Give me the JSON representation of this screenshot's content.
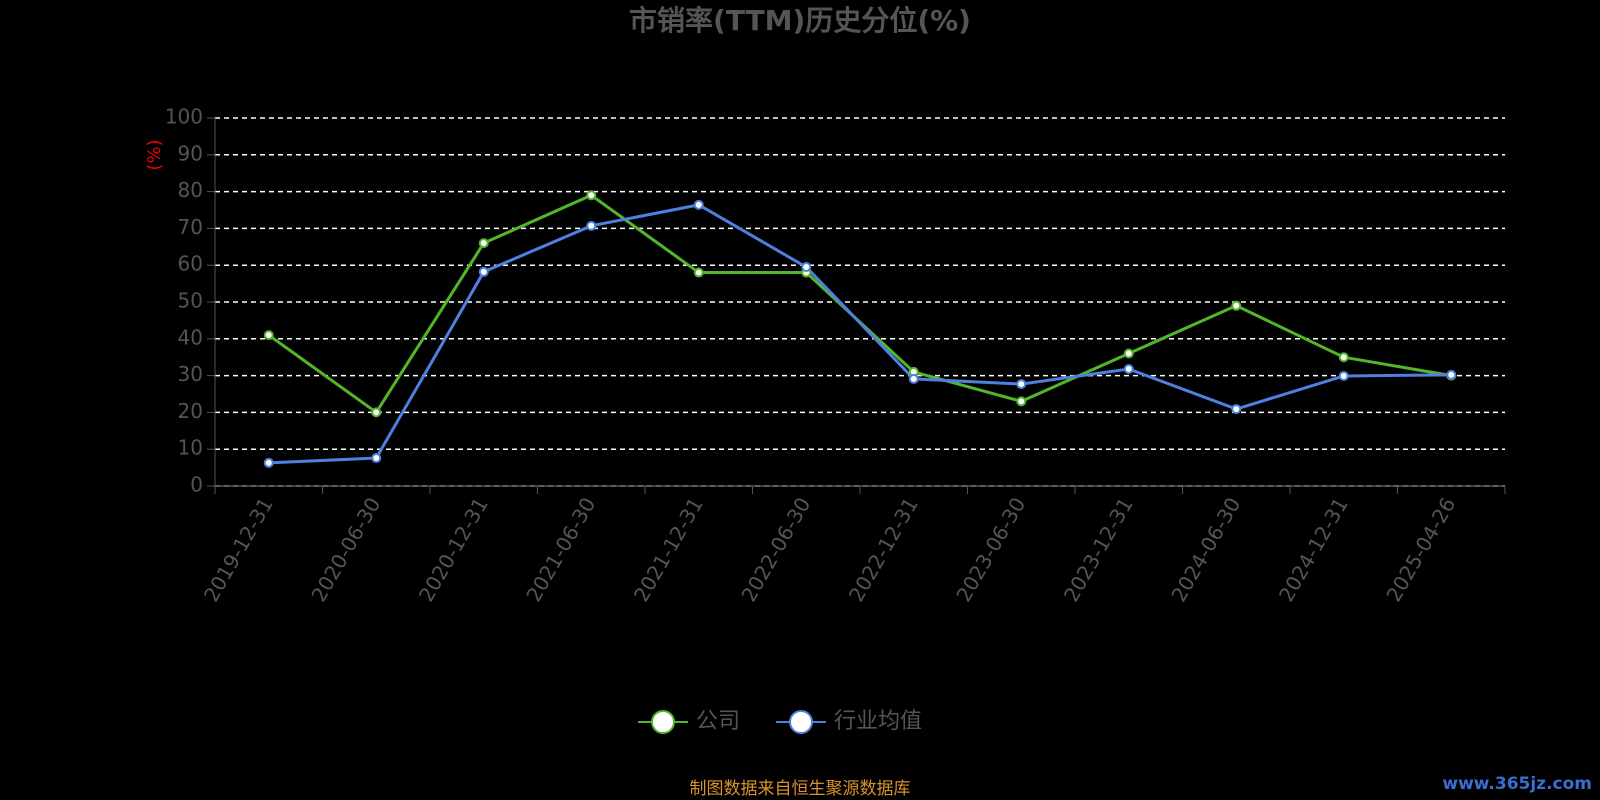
{
  "chart_data": {
    "type": "line",
    "title": "市销率(TTM)历史分位(%)",
    "y_label": "(%)",
    "categories": [
      "2019-12-31",
      "2020-06-30",
      "2020-12-31",
      "2021-06-30",
      "2021-12-31",
      "2022-06-30",
      "2022-12-31",
      "2023-06-30",
      "2023-12-31",
      "2024-06-30",
      "2024-12-31",
      "2025-04-26"
    ],
    "series": [
      {
        "name": "公司",
        "color": "#52b52a",
        "values": [
          41,
          20,
          66,
          79,
          58,
          58,
          31,
          23,
          36,
          49,
          35,
          30
        ]
      },
      {
        "name": "行业均值",
        "color": "#4f7fdf",
        "values": [
          6.3,
          7.6,
          58.2,
          70.7,
          76.4,
          59.5,
          29.1,
          27.7,
          31.8,
          20.9,
          29.9,
          30.2
        ]
      }
    ],
    "ylim": [
      0,
      100
    ],
    "yticks": [
      0,
      10,
      20,
      30,
      40,
      50,
      60,
      70,
      80,
      90,
      100
    ],
    "grid": true,
    "legend": "bottom",
    "source": "制图数据来自恒生聚源数据库",
    "watermark": "www.365jz.com"
  }
}
